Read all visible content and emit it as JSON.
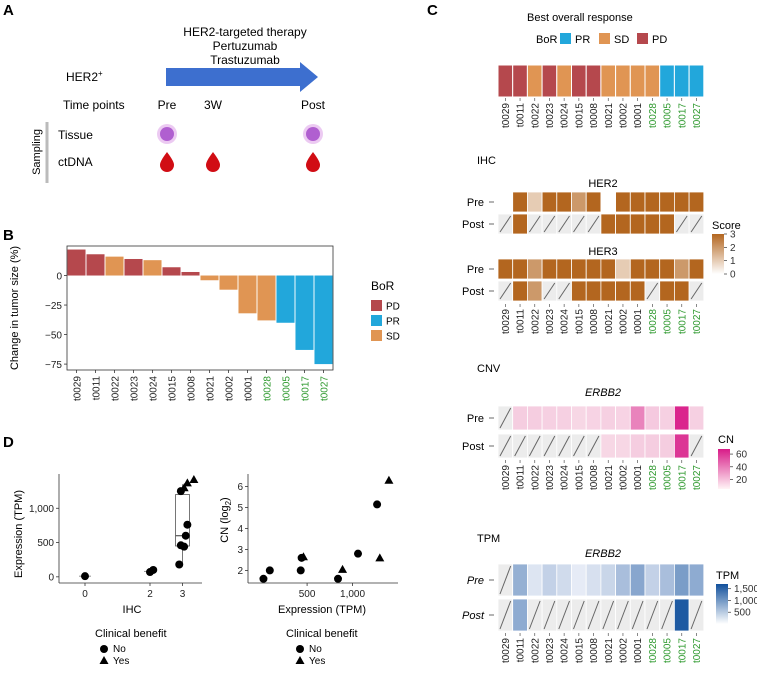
{
  "panels": {
    "a": "A",
    "b": "B",
    "c": "C",
    "d": "D"
  },
  "colors": {
    "PD": "#b5484d",
    "PR": "#22a7db",
    "SD": "#e09553",
    "green": "#2f9a2f",
    "arrow": "#3d6fcf",
    "tissue": "#b05fd0",
    "blood": "#d10d14",
    "ihc_hi": "#b3661f",
    "cn_hi": "#d81b88",
    "tpm_hi": "#11509c",
    "na": "#ececec"
  },
  "panel_a": {
    "therapy_lines": [
      "HER2-targeted therapy",
      "Pertuzumab",
      "Trastuzumab"
    ],
    "her2": "HER2",
    "her2_sup": "+",
    "timepoints_label": "Time points",
    "timepoints": [
      "Pre",
      "3W",
      "Post"
    ],
    "sampling_label": "Sampling",
    "rows": [
      "Tissue",
      "ctDNA"
    ]
  },
  "chart_data": [
    {
      "id": "waterfall",
      "type": "bar",
      "categories": [
        "t0029",
        "t0011",
        "t0022",
        "t0023",
        "t0024",
        "t0015",
        "t0008",
        "t0021",
        "t0002",
        "t0001",
        "t0028",
        "t0005",
        "t0017",
        "t0027"
      ],
      "values": [
        22,
        18,
        16,
        14,
        13,
        7,
        3,
        -4,
        -12,
        -32,
        -38,
        -40,
        -63,
        -75
      ],
      "bor": [
        "PD",
        "PD",
        "SD",
        "PD",
        "SD",
        "PD",
        "PD",
        "SD",
        "SD",
        "SD",
        "SD",
        "PR",
        "PR",
        "PR"
      ],
      "green_labels": [
        "t0028",
        "t0005",
        "t0017",
        "t0027"
      ],
      "ylabel": "Change in tumor size (%)",
      "ylim": [
        -80,
        25
      ],
      "yticks": [
        0,
        -25,
        -50,
        -75
      ],
      "ytick_labels": [
        "0",
        "−25",
        "−50",
        "−75"
      ],
      "legend": {
        "title": "BoR",
        "items": [
          "PD",
          "PR",
          "SD"
        ]
      }
    },
    {
      "id": "bor_strip",
      "type": "heatmap",
      "title": "Best overall response",
      "legend_title": "BoR",
      "legend_items": [
        "PR",
        "SD",
        "PD"
      ],
      "samples": [
        "t0029",
        "t0011",
        "t0022",
        "t0023",
        "t0024",
        "t0015",
        "t0008",
        "t0021",
        "t0002",
        "t0001",
        "t0028",
        "t0005",
        "t0017",
        "t0027"
      ],
      "values": [
        "PD",
        "PD",
        "SD",
        "PD",
        "SD",
        "PD",
        "PD",
        "SD",
        "SD",
        "SD",
        "SD",
        "PR",
        "PR",
        "PR"
      ]
    },
    {
      "id": "ihc",
      "type": "heatmap",
      "title": "IHC",
      "rows": [
        "Pre",
        "Post"
      ],
      "legend": {
        "title": "Score",
        "ticks": [
          3,
          2,
          1,
          0
        ],
        "range": [
          0,
          3
        ]
      },
      "blocks": [
        {
          "name": "HER2",
          "pre": [
            0,
            3,
            1,
            3,
            3,
            2,
            3,
            0,
            3,
            3,
            3,
            3,
            3,
            3
          ],
          "post": [
            null,
            3,
            null,
            null,
            null,
            null,
            null,
            3,
            3,
            3,
            3,
            3,
            null,
            null
          ]
        },
        {
          "name": "HER3",
          "pre": [
            3,
            3,
            2,
            3,
            3,
            3,
            3,
            3,
            1,
            3,
            3,
            3,
            2,
            3
          ],
          "post": [
            null,
            3,
            2,
            null,
            null,
            3,
            3,
            3,
            3,
            3,
            null,
            3,
            3,
            null
          ]
        }
      ]
    },
    {
      "id": "cnv",
      "type": "heatmap",
      "title": "CNV",
      "gene": "ERBB2",
      "rows": [
        "Pre",
        "Post"
      ],
      "legend": {
        "title": "CN",
        "ticks": [
          60,
          40,
          20
        ],
        "range": [
          5,
          68
        ]
      },
      "pre": [
        null,
        15,
        15,
        14,
        14,
        12,
        13,
        14,
        13,
        37,
        16,
        14,
        65,
        14
      ],
      "post": [
        null,
        null,
        null,
        null,
        null,
        null,
        null,
        12,
        12,
        15,
        15,
        15,
        60,
        null
      ]
    },
    {
      "id": "tpm",
      "type": "heatmap",
      "title": "TPM",
      "gene": "ERBB2",
      "rows": [
        "Pre",
        "Post"
      ],
      "legend": {
        "title": "TPM",
        "ticks": [
          1500,
          1000,
          500
        ],
        "tick_labels": [
          "1,500",
          "1,000",
          "500"
        ],
        "range": [
          0,
          1700
        ]
      },
      "pre": [
        null,
        700,
        150,
        350,
        250,
        80,
        200,
        300,
        550,
        800,
        350,
        550,
        900,
        750
      ],
      "post": [
        null,
        750,
        null,
        null,
        null,
        null,
        null,
        null,
        null,
        null,
        null,
        null,
        1600,
        null
      ]
    },
    {
      "id": "ihc_expr",
      "type": "scatter",
      "xlabel": "IHC",
      "ylabel": "Expression (TPM)",
      "xticks": [
        0,
        2,
        3
      ],
      "yticks": [
        0,
        500,
        1000
      ],
      "ytick_labels": [
        "0",
        "500",
        "1,000"
      ],
      "ylim": [
        -90,
        1500
      ],
      "xlim": [
        -0.8,
        3.6
      ],
      "box": {
        "x": 3,
        "q1": 450,
        "median": 600,
        "q3": 1200,
        "whisker_low": 150,
        "whisker_high": 1350
      },
      "points": [
        {
          "x": 0,
          "y": 10,
          "benefit": "No"
        },
        {
          "x": 2,
          "y": 70,
          "benefit": "No"
        },
        {
          "x": 2.1,
          "y": 100,
          "benefit": "No"
        },
        {
          "x": 2.9,
          "y": 180,
          "benefit": "No"
        },
        {
          "x": 2.95,
          "y": 460,
          "benefit": "No"
        },
        {
          "x": 3.05,
          "y": 440,
          "benefit": "No"
        },
        {
          "x": 3.1,
          "y": 600,
          "benefit": "No"
        },
        {
          "x": 3.15,
          "y": 760,
          "benefit": "No"
        },
        {
          "x": 2.95,
          "y": 1250,
          "benefit": "No"
        },
        {
          "x": 3.05,
          "y": 1300,
          "benefit": "Yes"
        },
        {
          "x": 3.15,
          "y": 1370,
          "benefit": "Yes"
        },
        {
          "x": 3.35,
          "y": 1420,
          "benefit": "Yes"
        }
      ],
      "legend": {
        "title": "Clinical benefit",
        "items": [
          "No",
          "Yes"
        ]
      }
    },
    {
      "id": "expr_cn",
      "type": "scatter",
      "xlabel": "Expression (TPM)",
      "ylabel": "CN (log",
      "ylabel_sub": "2",
      "ylabel_end": ")",
      "xticks": [
        500,
        1000
      ],
      "xtick_labels": [
        "500",
        "1,000"
      ],
      "yticks": [
        2,
        3,
        4,
        5,
        6
      ],
      "xlim": [
        -150,
        1500
      ],
      "ylim": [
        1.4,
        6.6
      ],
      "points": [
        {
          "x": 20,
          "y": 1.6,
          "benefit": "No"
        },
        {
          "x": 90,
          "y": 2.0,
          "benefit": "No"
        },
        {
          "x": 430,
          "y": 2.0,
          "benefit": "No"
        },
        {
          "x": 440,
          "y": 2.6,
          "benefit": "No"
        },
        {
          "x": 460,
          "y": 2.65,
          "benefit": "Yes"
        },
        {
          "x": 840,
          "y": 1.6,
          "benefit": "No"
        },
        {
          "x": 890,
          "y": 2.05,
          "benefit": "Yes"
        },
        {
          "x": 1060,
          "y": 2.8,
          "benefit": "No"
        },
        {
          "x": 1270,
          "y": 5.15,
          "benefit": "No"
        },
        {
          "x": 1300,
          "y": 2.6,
          "benefit": "Yes"
        },
        {
          "x": 1400,
          "y": 6.3,
          "benefit": "Yes"
        }
      ],
      "legend": {
        "title": "Clinical benefit",
        "items": [
          "No",
          "Yes"
        ]
      }
    }
  ]
}
